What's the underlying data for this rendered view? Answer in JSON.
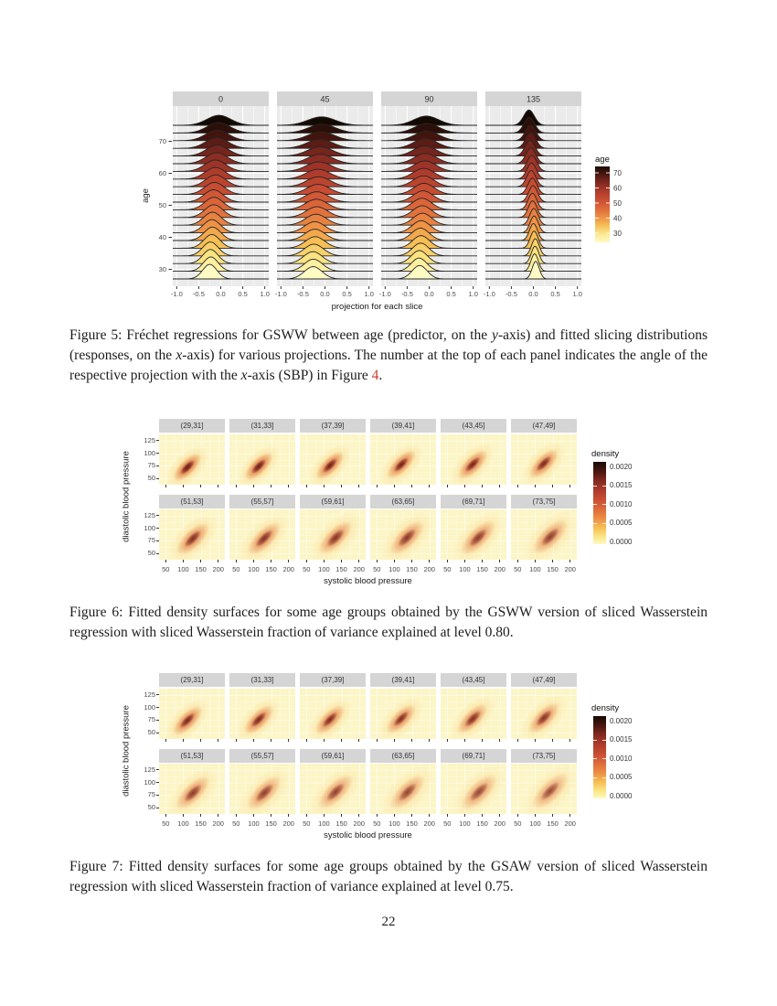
{
  "page": {
    "number": "22"
  },
  "colors": {
    "link_red": "#cb3a2a",
    "ridge_panel_bg": "#EBEBEB",
    "strip_bg": "#D5D5D5",
    "density_panel_bg": "#FCF5C6",
    "heat_palette": [
      [
        0.0,
        "#FEFAC4"
      ],
      [
        0.1,
        "#FAE380"
      ],
      [
        0.2,
        "#F6BE54"
      ],
      [
        0.3,
        "#EE9245"
      ],
      [
        0.42,
        "#DE6C3B"
      ],
      [
        0.54,
        "#C94E33"
      ],
      [
        0.66,
        "#AC3A2B"
      ],
      [
        0.78,
        "#7F2820"
      ],
      [
        0.88,
        "#4A1710"
      ],
      [
        1.0,
        "#150A03"
      ]
    ]
  },
  "chart_data": [
    {
      "id": "fig5",
      "type": "ridgeline",
      "xlabel": "projection for each slice",
      "ylabel": "age",
      "x_tick_labels": [
        "-1.0",
        "-0.5",
        "0.0",
        "0.5",
        "1.0"
      ],
      "x_tick_values": [
        -1,
        -0.5,
        0,
        0.5,
        1
      ],
      "x_minor_values": [
        -0.75,
        -0.25,
        0.25,
        0.75
      ],
      "xlim": [
        -1.09,
        1.09
      ],
      "y_ticks": [
        30,
        40,
        50,
        60,
        70
      ],
      "age_range": [
        27,
        75
      ],
      "ages": [
        27,
        29.4,
        31.8,
        34.2,
        36.6,
        39,
        41.4,
        43.8,
        46.2,
        48.6,
        51,
        53.4,
        55.8,
        58.2,
        60.6,
        63,
        65.4,
        67.8,
        70.2,
        72.6,
        75
      ],
      "facets": [
        {
          "label": "0",
          "center": [
            -0.25,
            -0.05
          ],
          "sd": [
            0.16,
            0.27
          ],
          "amp": [
            1.9,
            1.3
          ]
        },
        {
          "label": "45",
          "center": [
            -0.28,
            -0.07
          ],
          "sd": [
            0.2,
            0.31
          ],
          "amp": [
            1.6,
            1.1
          ]
        },
        {
          "label": "90",
          "center": [
            -0.23,
            -0.05
          ],
          "sd": [
            0.17,
            0.28
          ],
          "amp": [
            1.75,
            1.2
          ]
        },
        {
          "label": "135",
          "center": [
            0.05,
            -0.09
          ],
          "sd": [
            0.08,
            0.12
          ],
          "amp": [
            2.3,
            2.0
          ]
        }
      ],
      "legend": {
        "title": "age",
        "ticks": [
          "70",
          "60",
          "50",
          "40",
          "30"
        ]
      }
    },
    {
      "id": "fig6",
      "type": "heatmap",
      "xlabel": "systolic blood pressure",
      "ylabel": "diastolic blood pressure",
      "x_tick_labels": [
        "50",
        "100",
        "150",
        "200"
      ],
      "x_tick_values": [
        50,
        100,
        150,
        200
      ],
      "x_minor_values": [
        75,
        125,
        175
      ],
      "xlim": [
        31,
        219
      ],
      "y_tick_labels": [
        "125",
        "100",
        "75",
        "50"
      ],
      "y_tick_values": [
        125,
        100,
        75,
        50
      ],
      "y_minor_values": [
        62.5,
        87.5,
        112.5
      ],
      "ylim": [
        38,
        137
      ],
      "legend": {
        "title": "density",
        "ticks": [
          "0.0020",
          "0.0015",
          "0.0010",
          "0.0005",
          "0.0000"
        ]
      },
      "panels": [
        {
          "label": "(29,31]",
          "sys": 112,
          "dia": 73,
          "k": 1.0,
          "sp": 1.0
        },
        {
          "label": "(31,33]",
          "sys": 114,
          "dia": 74,
          "k": 0.98,
          "sp": 1.0
        },
        {
          "label": "(37,39]",
          "sys": 117,
          "dia": 76,
          "k": 0.95,
          "sp": 1.0
        },
        {
          "label": "(39,41]",
          "sys": 119,
          "dia": 77,
          "k": 0.93,
          "sp": 1.02
        },
        {
          "label": "(43,45]",
          "sys": 122,
          "dia": 78,
          "k": 0.9,
          "sp": 1.04
        },
        {
          "label": "(47,49]",
          "sys": 125,
          "dia": 79,
          "k": 0.86,
          "sp": 1.06
        },
        {
          "label": "(51,53]",
          "sys": 127,
          "dia": 79,
          "k": 0.8,
          "sp": 1.16
        },
        {
          "label": "(55,57]",
          "sys": 130,
          "dia": 80,
          "k": 0.78,
          "sp": 1.18
        },
        {
          "label": "(59,61]",
          "sys": 133,
          "dia": 81,
          "k": 0.75,
          "sp": 1.2
        },
        {
          "label": "(63,65]",
          "sys": 136,
          "dia": 82,
          "k": 0.72,
          "sp": 1.22
        },
        {
          "label": "(69,71]",
          "sys": 139,
          "dia": 82,
          "k": 0.7,
          "sp": 1.24
        },
        {
          "label": "(73,75]",
          "sys": 142,
          "dia": 83,
          "k": 0.68,
          "sp": 1.26
        }
      ]
    },
    {
      "id": "fig7",
      "type": "heatmap",
      "xlabel": "systolic blood pressure",
      "ylabel": "diastolic blood pressure",
      "x_tick_labels": [
        "50",
        "100",
        "150",
        "200"
      ],
      "x_tick_values": [
        50,
        100,
        150,
        200
      ],
      "x_minor_values": [
        75,
        125,
        175
      ],
      "xlim": [
        31,
        219
      ],
      "y_tick_labels": [
        "125",
        "100",
        "75",
        "50"
      ],
      "y_tick_values": [
        125,
        100,
        75,
        50
      ],
      "y_minor_values": [
        62.5,
        87.5,
        112.5
      ],
      "ylim": [
        38,
        137
      ],
      "legend": {
        "title": "density",
        "ticks": [
          "0.0020",
          "0.0015",
          "0.0010",
          "0.0005",
          "0.0000"
        ]
      },
      "panels": [
        {
          "label": "(29,31]",
          "sys": 113,
          "dia": 74,
          "k": 0.88,
          "sp": 1.04
        },
        {
          "label": "(31,33]",
          "sys": 115,
          "dia": 75,
          "k": 0.86,
          "sp": 1.04
        },
        {
          "label": "(37,39]",
          "sys": 118,
          "dia": 76,
          "k": 0.83,
          "sp": 1.05
        },
        {
          "label": "(39,41]",
          "sys": 120,
          "dia": 77,
          "k": 0.81,
          "sp": 1.06
        },
        {
          "label": "(43,45]",
          "sys": 123,
          "dia": 78,
          "k": 0.79,
          "sp": 1.08
        },
        {
          "label": "(47,49]",
          "sys": 126,
          "dia": 79,
          "k": 0.76,
          "sp": 1.1
        },
        {
          "label": "(51,53]",
          "sys": 128,
          "dia": 80,
          "k": 0.7,
          "sp": 1.2
        },
        {
          "label": "(55,57]",
          "sys": 131,
          "dia": 80,
          "k": 0.68,
          "sp": 1.22
        },
        {
          "label": "(59,61]",
          "sys": 134,
          "dia": 81,
          "k": 0.66,
          "sp": 1.24
        },
        {
          "label": "(63,65]",
          "sys": 137,
          "dia": 82,
          "k": 0.64,
          "sp": 1.26
        },
        {
          "label": "(69,71]",
          "sys": 140,
          "dia": 82,
          "k": 0.62,
          "sp": 1.28
        },
        {
          "label": "(73,75]",
          "sys": 143,
          "dia": 83,
          "k": 0.6,
          "sp": 1.3
        }
      ]
    }
  ],
  "captions": {
    "fig5": [
      {
        "t": "Figure 5: Fréchet regressions for GSWW between age (predictor, on the "
      },
      {
        "t": "y",
        "s": "i"
      },
      {
        "t": "-axis) and fitted slicing distributions (responses, on the "
      },
      {
        "t": "x",
        "s": "i"
      },
      {
        "t": "-axis) for various projections.  The number at the top of each panel indicates the angle of the respective projection with the "
      },
      {
        "t": "x",
        "s": "i"
      },
      {
        "t": "-axis (SBP) in Figure "
      },
      {
        "t": "4",
        "s": "link"
      },
      {
        "t": "."
      }
    ],
    "fig6": [
      {
        "t": "Figure 6: Fitted density surfaces for some age groups obtained by the GSWW version of sliced Wasserstein regression with sliced Wasserstein fraction of variance explained at level 0.80."
      }
    ],
    "fig7": [
      {
        "t": "Figure 7: Fitted density surfaces for some age groups obtained by the GSAW version of sliced Wasserstein regression with sliced Wasserstein fraction of variance explained at level 0.75."
      }
    ]
  }
}
